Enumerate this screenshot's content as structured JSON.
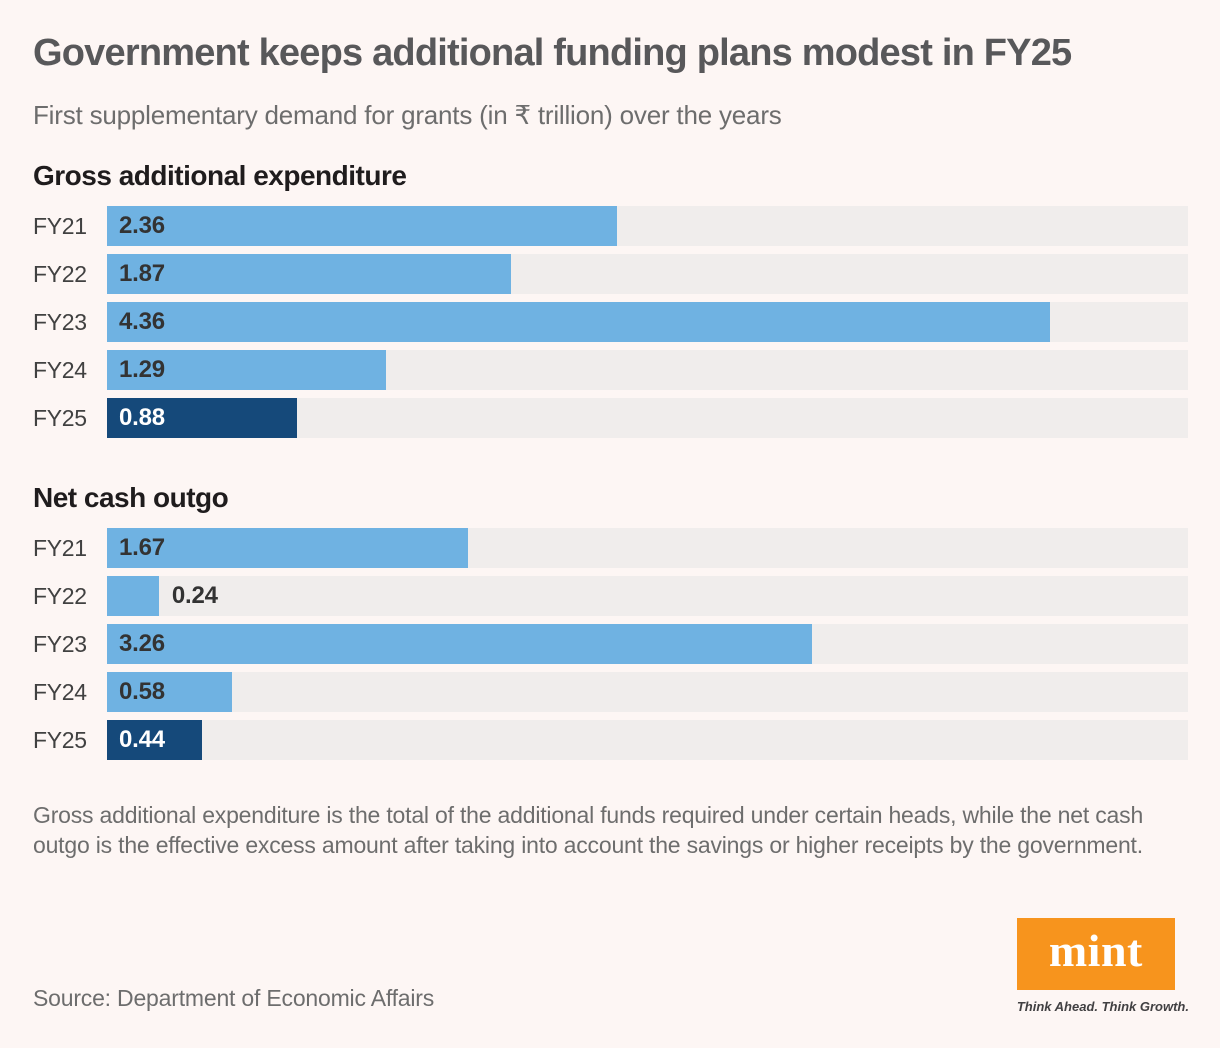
{
  "title": "Government keeps additional funding plans modest in FY25",
  "subtitle": "First supplementary demand for grants (in ₹ trillion) over the years",
  "colors": {
    "background": "#fdf6f4",
    "bar_track": "#f0edec",
    "bar_light_blue": "#6fb2e2",
    "bar_dark_blue": "#15497a",
    "value_label_dark": "#333333",
    "value_label_light": "#ffffff",
    "mint_orange": "#f7941d"
  },
  "chart_data": [
    {
      "type": "bar",
      "orientation": "horizontal",
      "title": "Gross additional expenditure",
      "categories": [
        "FY21",
        "FY22",
        "FY23",
        "FY24",
        "FY25"
      ],
      "values": [
        2.36,
        1.87,
        4.36,
        1.29,
        0.88
      ],
      "value_labels": [
        "2.36",
        "1.87",
        "4.36",
        "1.29",
        "0.88"
      ],
      "xlim": [
        0,
        5
      ],
      "grid": false,
      "highlight_category": "FY25"
    },
    {
      "type": "bar",
      "orientation": "horizontal",
      "title": "Net cash outgo",
      "categories": [
        "FY21",
        "FY22",
        "FY23",
        "FY24",
        "FY25"
      ],
      "values": [
        1.67,
        0.24,
        3.26,
        0.58,
        0.44
      ],
      "value_labels": [
        "1.67",
        "0.24",
        "3.26",
        "0.58",
        "0.44"
      ],
      "xlim": [
        0,
        5
      ],
      "grid": false,
      "highlight_category": "FY25"
    }
  ],
  "footnote": "Gross additional expenditure is the total of the additional funds required under certain heads, while the net cash outgo is the effective excess amount after taking into account the savings or higher receipts by the government.",
  "source": "Source: Department of Economic Affairs",
  "logo": {
    "text": "mint",
    "tagline": "Think Ahead. Think Growth."
  }
}
